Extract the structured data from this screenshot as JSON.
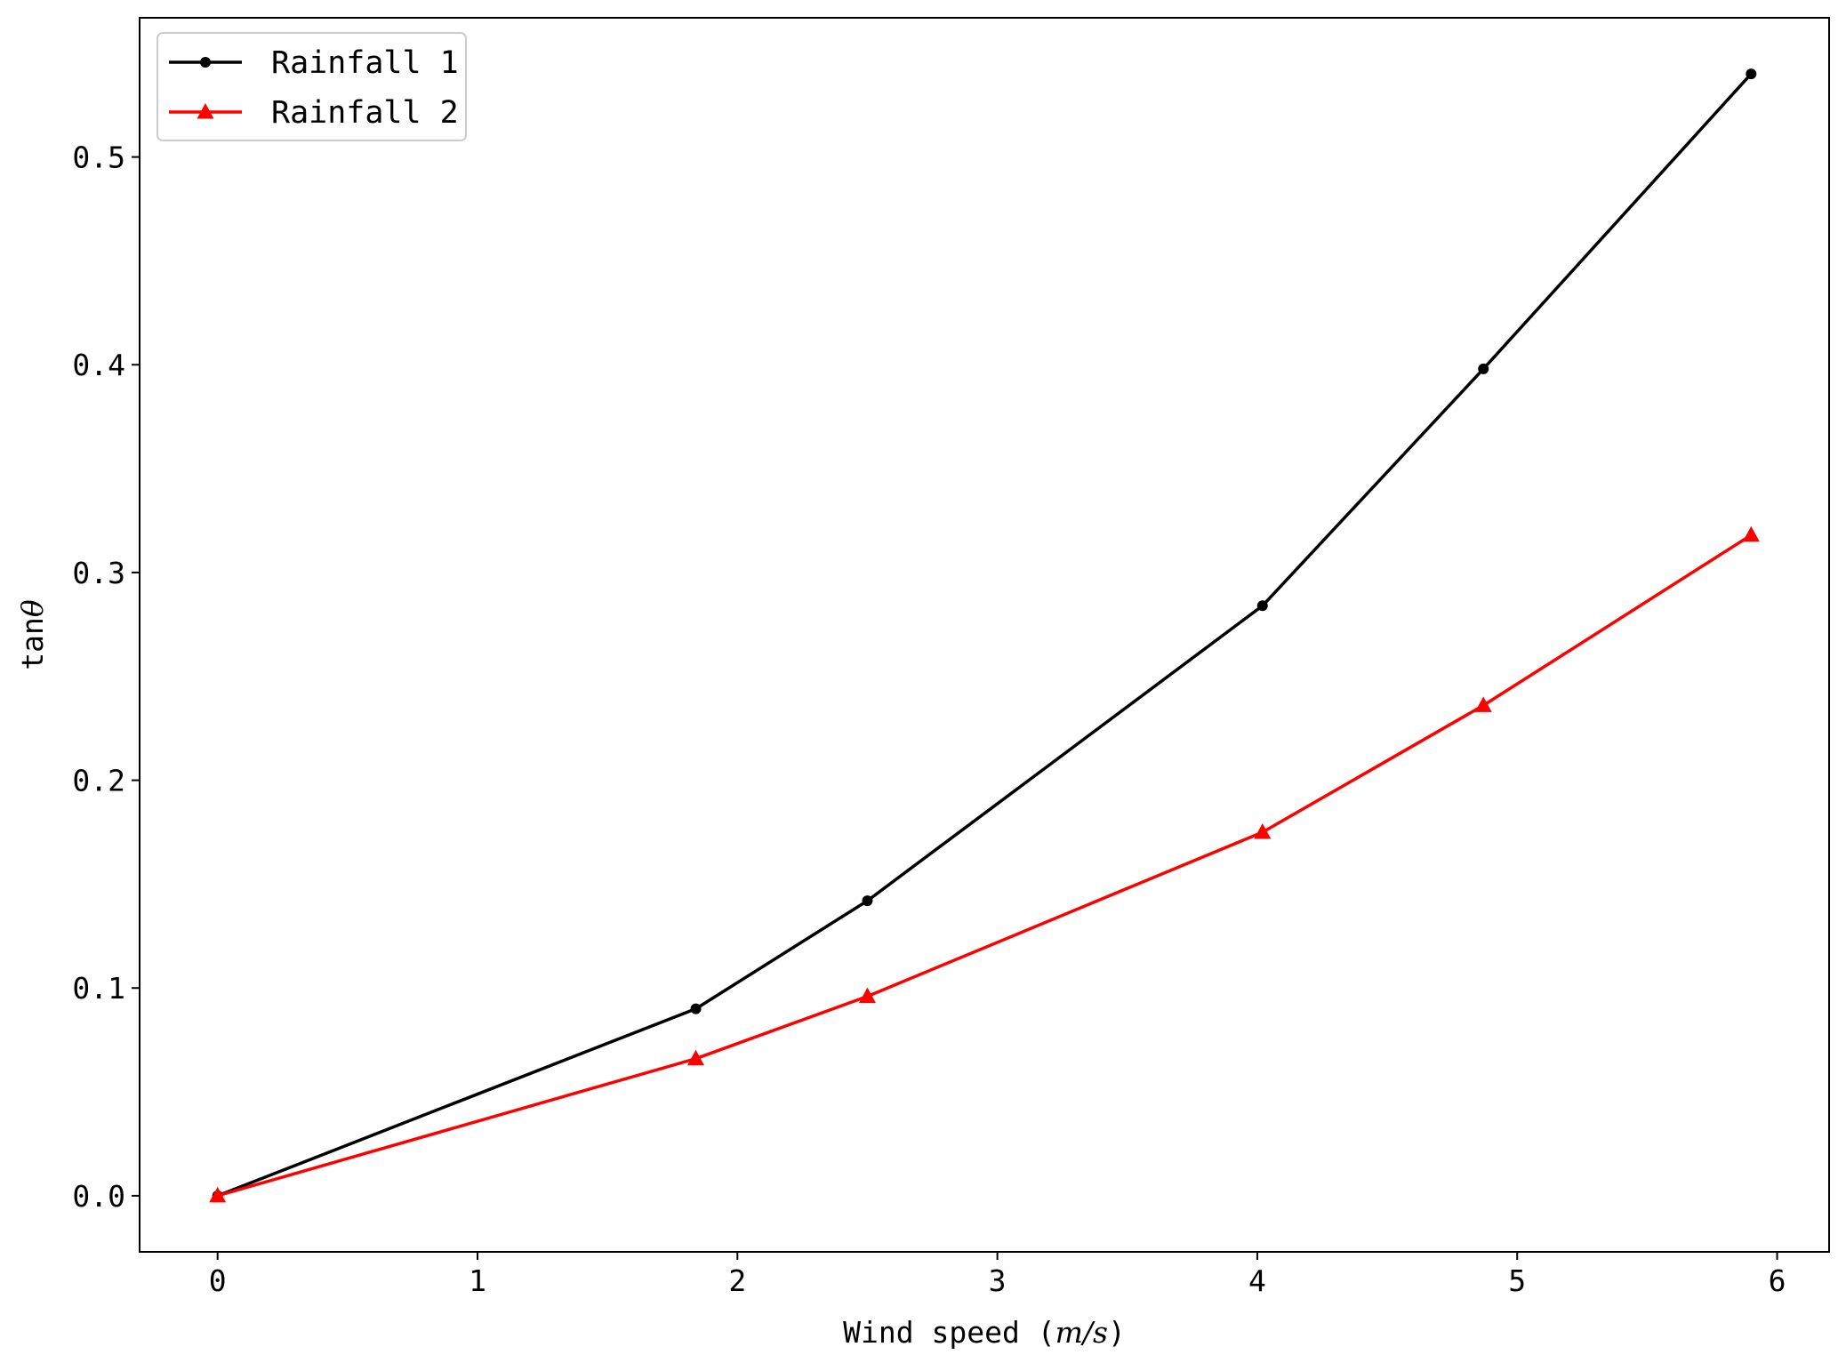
{
  "chart_data": {
    "type": "line",
    "xlabel_prefix": "Wind speed (",
    "xlabel_unit": "m/s",
    "xlabel_suffix": ")",
    "ylabel_prefix": "tan",
    "ylabel_symbol": "θ",
    "xlim": [
      -0.3,
      6.2
    ],
    "ylim": [
      -0.027,
      0.567
    ],
    "xticks": [
      0,
      1,
      2,
      3,
      4,
      5,
      6
    ],
    "yticks": [
      0.0,
      0.1,
      0.2,
      0.3,
      0.4,
      0.5
    ],
    "ytick_labels": [
      "0.0",
      "0.1",
      "0.2",
      "0.3",
      "0.4",
      "0.5"
    ],
    "grid": false,
    "legend_position": "top-left",
    "series": [
      {
        "name": "Rainfall 1",
        "color": "#000000",
        "marker": "circle",
        "x": [
          0,
          1.84,
          2.5,
          4.02,
          4.87,
          5.9
        ],
        "y": [
          0,
          0.09,
          0.142,
          0.284,
          0.398,
          0.54
        ]
      },
      {
        "name": "Rainfall 2",
        "color": "#ff0000",
        "marker": "triangle",
        "x": [
          0,
          1.84,
          2.5,
          4.02,
          4.87,
          5.9
        ],
        "y": [
          0,
          0.066,
          0.096,
          0.175,
          0.236,
          0.318
        ]
      }
    ]
  }
}
